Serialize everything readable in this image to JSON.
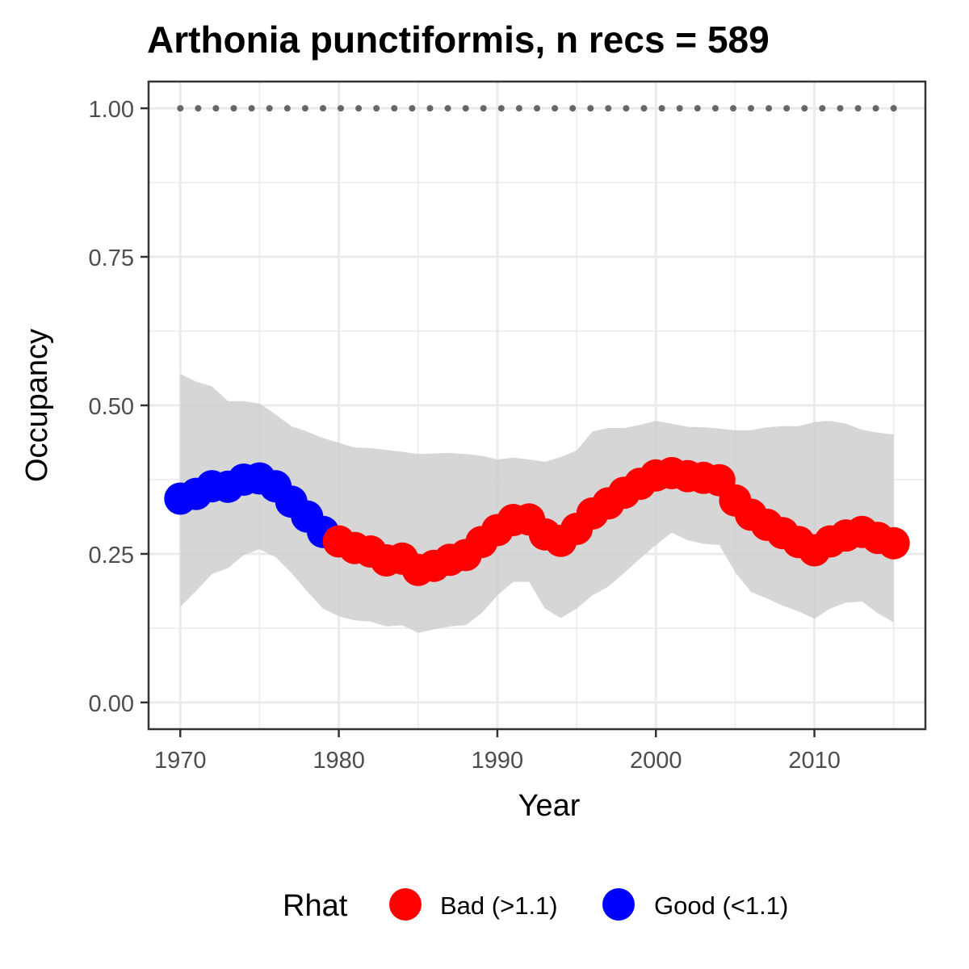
{
  "chart_data": {
    "type": "line",
    "title": "Arthonia punctiformis, n recs = 589",
    "xlabel": "Year",
    "ylabel": "Occupancy",
    "xlim": [
      1968,
      2017
    ],
    "ylim": [
      -0.045,
      1.045
    ],
    "x_ticks": [
      1970,
      1980,
      1990,
      2000,
      2010
    ],
    "x_tick_labels": [
      "1970",
      "1980",
      "1990",
      "2000",
      "2010"
    ],
    "y_ticks": [
      0,
      0.25,
      0.5,
      0.75,
      1.0
    ],
    "y_tick_labels": [
      "0.00",
      "0.25",
      "0.50",
      "0.75",
      "1.00"
    ],
    "grid": true,
    "legend": {
      "title": "Rhat",
      "position": "bottom",
      "items": [
        {
          "label": "Bad (>1.1)",
          "color": "#ff0000"
        },
        {
          "label": "Good (<1.1)",
          "color": "#0000ff"
        }
      ]
    },
    "years": [
      1970,
      1971,
      1972,
      1973,
      1974,
      1975,
      1976,
      1977,
      1978,
      1979,
      1980,
      1981,
      1982,
      1983,
      1984,
      1985,
      1986,
      1987,
      1988,
      1989,
      1990,
      1991,
      1992,
      1993,
      1994,
      1995,
      1996,
      1997,
      1998,
      1999,
      2000,
      2001,
      2002,
      2003,
      2004,
      2005,
      2006,
      2007,
      2008,
      2009,
      2010,
      2011,
      2012,
      2013,
      2014,
      2015
    ],
    "occupancy": [
      0.343,
      0.351,
      0.364,
      0.363,
      0.375,
      0.377,
      0.364,
      0.338,
      0.313,
      0.287,
      0.271,
      0.26,
      0.254,
      0.239,
      0.242,
      0.223,
      0.23,
      0.24,
      0.248,
      0.27,
      0.29,
      0.307,
      0.308,
      0.283,
      0.272,
      0.292,
      0.318,
      0.335,
      0.353,
      0.368,
      0.382,
      0.386,
      0.381,
      0.378,
      0.374,
      0.34,
      0.316,
      0.299,
      0.285,
      0.27,
      0.256,
      0.271,
      0.281,
      0.287,
      0.277,
      0.268
    ],
    "rhat_status": [
      "Good",
      "Good",
      "Good",
      "Good",
      "Good",
      "Good",
      "Good",
      "Good",
      "Good",
      "Good",
      "Bad",
      "Bad",
      "Bad",
      "Bad",
      "Bad",
      "Bad",
      "Bad",
      "Bad",
      "Bad",
      "Bad",
      "Bad",
      "Bad",
      "Bad",
      "Bad",
      "Bad",
      "Bad",
      "Bad",
      "Bad",
      "Bad",
      "Bad",
      "Bad",
      "Bad",
      "Bad",
      "Bad",
      "Bad",
      "Bad",
      "Bad",
      "Bad",
      "Bad",
      "Bad",
      "Bad",
      "Bad",
      "Bad",
      "Bad",
      "Bad",
      "Bad"
    ],
    "ci_upper": [
      0.553,
      0.54,
      0.532,
      0.507,
      0.507,
      0.503,
      0.485,
      0.465,
      0.456,
      0.445,
      0.437,
      0.429,
      0.428,
      0.425,
      0.422,
      0.418,
      0.419,
      0.42,
      0.418,
      0.415,
      0.409,
      0.412,
      0.409,
      0.405,
      0.413,
      0.424,
      0.456,
      0.462,
      0.462,
      0.467,
      0.474,
      0.469,
      0.464,
      0.463,
      0.461,
      0.458,
      0.458,
      0.463,
      0.465,
      0.465,
      0.472,
      0.474,
      0.469,
      0.459,
      0.454,
      0.451
    ],
    "ci_lower": [
      0.161,
      0.188,
      0.216,
      0.226,
      0.248,
      0.258,
      0.245,
      0.218,
      0.187,
      0.158,
      0.145,
      0.138,
      0.136,
      0.128,
      0.13,
      0.117,
      0.123,
      0.128,
      0.13,
      0.15,
      0.18,
      0.203,
      0.203,
      0.158,
      0.142,
      0.158,
      0.18,
      0.195,
      0.218,
      0.242,
      0.265,
      0.286,
      0.273,
      0.267,
      0.265,
      0.219,
      0.186,
      0.175,
      0.163,
      0.153,
      0.141,
      0.158,
      0.168,
      0.17,
      0.15,
      0.135
    ],
    "reference_line": {
      "y": 1.0,
      "style": "dotted",
      "color": "#666666"
    },
    "colors": {
      "bad": "#ff0000",
      "good": "#0000ff",
      "ci_band": "#cccccc",
      "grid": "#ebebeb",
      "panel_border": "#333333"
    }
  }
}
